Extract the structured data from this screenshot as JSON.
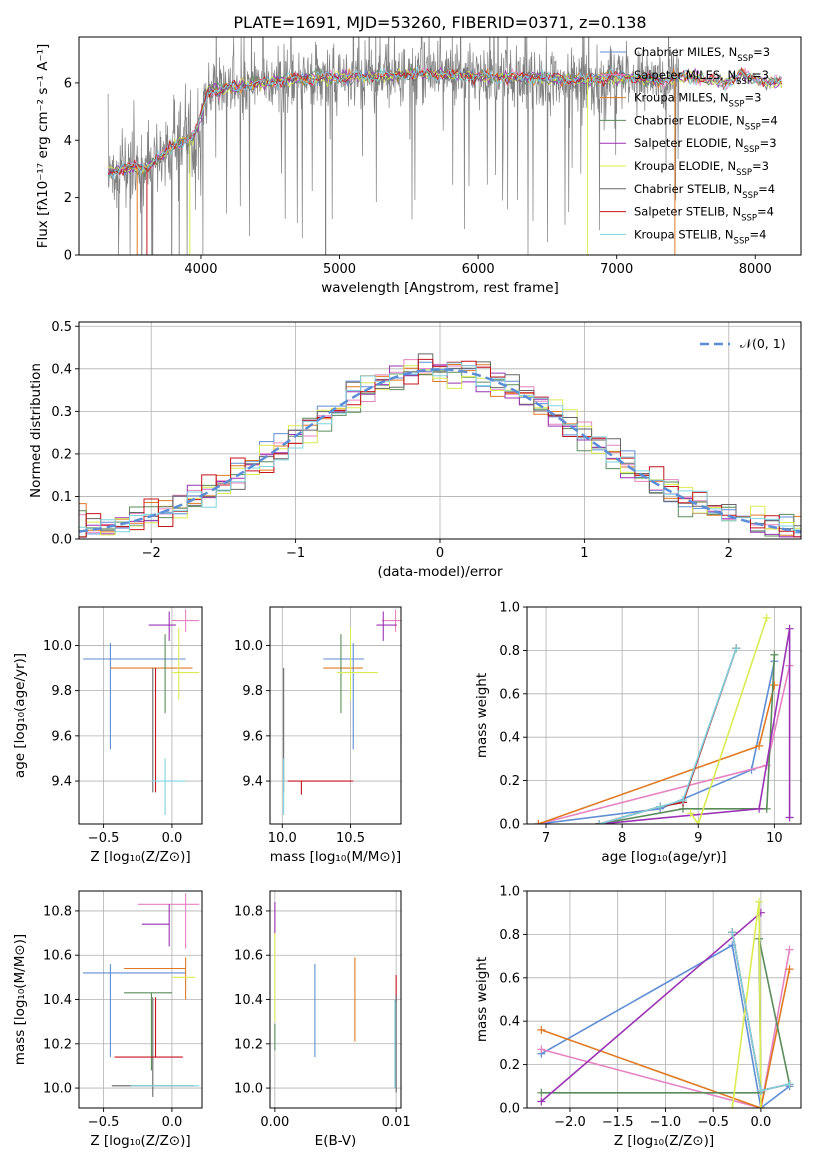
{
  "title": "PLATE=1691, MJD=53260, FIBERID=0371, z=0.138",
  "colors": {
    "Chabrier MILES": "#5f8ed6",
    "Salpeter MILES": "#e683c2",
    "Kroupa MILES": "#e07a22",
    "Chabrier ELODIE": "#5a8c5a",
    "Salpeter ELODIE": "#9a33b5",
    "Kroupa ELODIE": "#dbeb52",
    "Chabrier STELIB": "#666666",
    "Salpeter STELIB": "#c4141c",
    "Kroupa STELIB": "#7ed3df",
    "data": "#808080",
    "gaussian": "#5b8ed6"
  },
  "legend_entries": [
    {
      "label": "Chabrier MILES, N",
      "sub": "SSP",
      "suffix": "=3",
      "model": "Chabrier MILES"
    },
    {
      "label": "Salpeter MILES, N",
      "sub": "SSP",
      "suffix": "=3",
      "model": "Salpeter MILES"
    },
    {
      "label": "Kroupa MILES, N",
      "sub": "SSP",
      "suffix": "=3",
      "model": "Kroupa MILES"
    },
    {
      "label": "Chabrier ELODIE, N",
      "sub": "SSP",
      "suffix": "=4",
      "model": "Chabrier ELODIE"
    },
    {
      "label": "Salpeter ELODIE, N",
      "sub": "SSP",
      "suffix": "=3",
      "model": "Salpeter ELODIE"
    },
    {
      "label": "Kroupa ELODIE, N",
      "sub": "SSP",
      "suffix": "=3",
      "model": "Kroupa ELODIE"
    },
    {
      "label": "Chabrier STELIB, N",
      "sub": "SSP",
      "suffix": "=4",
      "model": "Chabrier STELIB"
    },
    {
      "label": "Salpeter STELIB, N",
      "sub": "SSP",
      "suffix": "=4",
      "model": "Salpeter STELIB"
    },
    {
      "label": "Kroupa STELIB, N",
      "sub": "SSP",
      "suffix": "=4",
      "model": "Kroupa STELIB"
    }
  ],
  "chart_data": [
    {
      "id": "spectrum",
      "type": "line",
      "xlabel": "wavelength [Angstrom, rest frame]",
      "ylabel": "Flux [fλ10⁻¹⁷ erg cm⁻² s⁻¹ A⁻¹]",
      "xlim": [
        3120,
        8330
      ],
      "ylim": [
        0,
        7.6
      ],
      "xticks": [
        4000,
        5000,
        6000,
        7000,
        8000
      ],
      "yticks": [
        0,
        2,
        4,
        6
      ],
      "continuum_points": [
        [
          3350,
          2.9
        ],
        [
          3500,
          3.1
        ],
        [
          3600,
          3.0
        ],
        [
          3800,
          3.8
        ],
        [
          3950,
          4.1
        ],
        [
          4050,
          5.7
        ],
        [
          4300,
          5.9
        ],
        [
          4600,
          6.1
        ],
        [
          4900,
          6.2
        ],
        [
          5200,
          6.2
        ],
        [
          5500,
          6.3
        ],
        [
          5800,
          6.3
        ],
        [
          6100,
          6.2
        ],
        [
          6400,
          6.2
        ],
        [
          6700,
          6.1
        ],
        [
          7000,
          6.2
        ],
        [
          7300,
          6.1
        ],
        [
          7500,
          6.2
        ],
        [
          7700,
          6.1
        ],
        [
          7800,
          6.0
        ],
        [
          7900,
          6.3
        ],
        [
          8000,
          6.1
        ],
        [
          8100,
          6.0
        ]
      ],
      "data_extent": [
        3330,
        7450
      ],
      "model_extent": [
        3330,
        8200
      ]
    },
    {
      "id": "residuals",
      "type": "histogram",
      "xlabel": "(data-model)/error",
      "ylabel": "Normed distribution",
      "xlim": [
        -2.5,
        2.5
      ],
      "ylim": [
        0,
        0.51
      ],
      "xticks": [
        -2,
        -1,
        0,
        1,
        2
      ],
      "yticks": [
        0.0,
        0.1,
        0.2,
        0.3,
        0.4,
        0.5
      ],
      "bin_width": 0.1,
      "reference": {
        "name": "𝒩(0, 1)",
        "mean": 0,
        "sigma": 1
      }
    },
    {
      "id": "age-vs-Z",
      "type": "errorbar",
      "xlabel": "Z [log₁₀(Z/Z⊙)]",
      "ylabel": "age  [log₁₀(age/yr)]",
      "xlim": [
        -0.68,
        0.22
      ],
      "ylim": [
        9.21,
        10.17
      ],
      "xticks": [
        -0.5,
        0.0
      ],
      "yticks": [
        9.4,
        9.6,
        9.8,
        10.0
      ],
      "points": [
        {
          "model": "Chabrier MILES",
          "x": -0.45,
          "y": 9.94,
          "xlo": 0.2,
          "xhi": 0.55,
          "ylo": 0.4,
          "yhi": 0.07
        },
        {
          "model": "Salpeter MILES",
          "x": 0.1,
          "y": 10.11,
          "xlo": 0.1,
          "xhi": 0.1,
          "ylo": 0.05,
          "yhi": 0.05
        },
        {
          "model": "Kroupa MILES",
          "x": -0.25,
          "y": 9.9,
          "xlo": 0.2,
          "xhi": 0.4,
          "ylo": 0.0,
          "yhi": 0.0
        },
        {
          "model": "Chabrier ELODIE",
          "x": -0.05,
          "y": 9.85,
          "xlo": 0.0,
          "xhi": 0.0,
          "ylo": 0.15,
          "yhi": 0.2
        },
        {
          "model": "Salpeter ELODIE",
          "x": -0.02,
          "y": 10.09,
          "xlo": 0.15,
          "xhi": 0.05,
          "ylo": 0.07,
          "yhi": 0.06
        },
        {
          "model": "Kroupa ELODIE",
          "x": 0.05,
          "y": 9.88,
          "xlo": 0.05,
          "xhi": 0.15,
          "ylo": 0.12,
          "yhi": 0.2
        },
        {
          "model": "Chabrier STELIB",
          "x": -0.14,
          "y": 9.65,
          "xlo": 0.0,
          "xhi": 0.0,
          "ylo": 0.3,
          "yhi": 0.25
        },
        {
          "model": "Salpeter STELIB",
          "x": -0.12,
          "y": 9.65,
          "xlo": 0.0,
          "xhi": 0.0,
          "ylo": 0.3,
          "yhi": 0.25
        },
        {
          "model": "Kroupa STELIB",
          "x": -0.05,
          "y": 9.4,
          "xlo": 0.1,
          "xhi": 0.15,
          "ylo": 0.15,
          "yhi": 0.1
        }
      ]
    },
    {
      "id": "age-vs-mass",
      "type": "errorbar",
      "xlabel": "mass [log₁₀(M/M⊙)]",
      "ylabel": "",
      "xlim": [
        9.91,
        10.87
      ],
      "ylim": [
        9.21,
        10.17
      ],
      "xticks": [
        10.0,
        10.5
      ],
      "yticks": [
        9.4,
        9.6,
        9.8,
        10.0
      ],
      "points": [
        {
          "model": "Chabrier MILES",
          "x": 10.52,
          "y": 9.94,
          "xlo": 0.22,
          "xhi": 0.08,
          "ylo": 0.4,
          "yhi": 0.07
        },
        {
          "model": "Salpeter MILES",
          "x": 10.83,
          "y": 10.11,
          "xlo": 0.1,
          "xhi": 0.1,
          "ylo": 0.05,
          "yhi": 0.05
        },
        {
          "model": "Kroupa MILES",
          "x": 10.54,
          "y": 9.9,
          "xlo": 0.24,
          "xhi": 0.05,
          "ylo": 0.0,
          "yhi": 0.0
        },
        {
          "model": "Chabrier ELODIE",
          "x": 10.43,
          "y": 9.85,
          "xlo": 0.0,
          "xhi": 0.0,
          "ylo": 0.15,
          "yhi": 0.2
        },
        {
          "model": "Salpeter ELODIE",
          "x": 10.74,
          "y": 10.09,
          "xlo": 0.05,
          "xhi": 0.1,
          "ylo": 0.07,
          "yhi": 0.06
        },
        {
          "model": "Kroupa ELODIE",
          "x": 10.5,
          "y": 9.88,
          "xlo": 0.1,
          "xhi": 0.2,
          "ylo": 0.12,
          "yhi": 0.2
        },
        {
          "model": "Chabrier STELIB",
          "x": 10.01,
          "y": 9.65,
          "xlo": 0.0,
          "xhi": 0.0,
          "ylo": 0.3,
          "yhi": 0.25
        },
        {
          "model": "Salpeter STELIB",
          "x": 10.14,
          "y": 9.4,
          "xlo": 0.1,
          "xhi": 0.38,
          "ylo": 0.06,
          "yhi": 0.0
        },
        {
          "model": "Kroupa STELIB",
          "x": 10.01,
          "y": 9.4,
          "xlo": 0.0,
          "xhi": 0.0,
          "ylo": 0.15,
          "yhi": 0.1
        }
      ]
    },
    {
      "id": "weight-vs-age",
      "type": "line",
      "xlabel": "age  [log₁₀(age/yr)]",
      "ylabel": "mass weight",
      "xlim": [
        6.75,
        10.35
      ],
      "ylim": [
        0,
        1.0
      ],
      "xticks": [
        7,
        8,
        9,
        10
      ],
      "yticks": [
        0.0,
        0.2,
        0.4,
        0.6,
        0.8,
        1.0
      ],
      "series": [
        {
          "model": "Chabrier MILES",
          "x": [
            6.9,
            8.5,
            9.7,
            10.0
          ],
          "y": [
            0.0,
            0.07,
            0.25,
            0.75
          ]
        },
        {
          "model": "Salpeter MILES",
          "x": [
            6.9,
            9.9,
            10.2
          ],
          "y": [
            0.0,
            0.27,
            0.73
          ]
        },
        {
          "model": "Kroupa MILES",
          "x": [
            6.9,
            9.8,
            10.0
          ],
          "y": [
            0.0,
            0.36,
            0.64
          ]
        },
        {
          "model": "Chabrier ELODIE",
          "x": [
            7.7,
            8.8,
            9.9,
            10.0
          ],
          "y": [
            0.0,
            0.07,
            0.07,
            0.78
          ]
        },
        {
          "model": "Salpeter ELODIE",
          "x": [
            7.7,
            9.8,
            10.2,
            10.2
          ],
          "y": [
            0.0,
            0.07,
            0.9,
            0.03
          ]
        },
        {
          "model": "Kroupa ELODIE",
          "x": [
            8.9,
            9.0,
            9.9
          ],
          "y": [
            0.05,
            0.0,
            0.95
          ]
        },
        {
          "model": "Chabrier STELIB",
          "x": [
            7.7,
            8.5,
            8.8,
            9.5
          ],
          "y": [
            0.0,
            0.08,
            0.1,
            0.81
          ]
        },
        {
          "model": "Salpeter STELIB",
          "x": [
            7.7,
            8.5,
            8.8,
            9.5
          ],
          "y": [
            0.0,
            0.08,
            0.1,
            0.81
          ]
        },
        {
          "model": "Kroupa STELIB",
          "x": [
            7.7,
            8.5,
            8.8,
            9.5
          ],
          "y": [
            0.0,
            0.08,
            0.11,
            0.81
          ]
        }
      ]
    },
    {
      "id": "mass-vs-Z",
      "type": "errorbar",
      "xlabel": "Z [log₁₀(Z/Z⊙)]",
      "ylabel": "mass [log₁₀(M/M⊙)]",
      "xlim": [
        -0.68,
        0.22
      ],
      "ylim": [
        9.91,
        10.89
      ],
      "xticks": [
        -0.5,
        0.0
      ],
      "yticks": [
        10.0,
        10.2,
        10.4,
        10.6,
        10.8
      ],
      "points": [
        {
          "model": "Chabrier MILES",
          "x": -0.45,
          "y": 10.52,
          "xlo": 0.2,
          "xhi": 0.55,
          "ylo": 0.38,
          "yhi": 0.04
        },
        {
          "model": "Salpeter MILES",
          "x": 0.1,
          "y": 10.83,
          "xlo": 0.35,
          "xhi": 0.1,
          "ylo": 0.2,
          "yhi": 0.05
        },
        {
          "model": "Kroupa MILES",
          "x": 0.1,
          "y": 10.54,
          "xlo": 0.45,
          "xhi": 0.0,
          "ylo": 0.14,
          "yhi": 0.05
        },
        {
          "model": "Chabrier ELODIE",
          "x": -0.15,
          "y": 10.43,
          "xlo": 0.2,
          "xhi": 0.15,
          "ylo": 0.35,
          "yhi": 0.0
        },
        {
          "model": "Salpeter ELODIE",
          "x": -0.02,
          "y": 10.74,
          "xlo": 0.2,
          "xhi": 0.0,
          "ylo": 0.1,
          "yhi": 0.09
        },
        {
          "model": "Kroupa ELODIE",
          "x": 0.05,
          "y": 10.5,
          "xlo": 0.05,
          "xhi": 0.12,
          "ylo": 0.0,
          "yhi": 0.0
        },
        {
          "model": "Chabrier STELIB",
          "x": -0.14,
          "y": 10.01,
          "xlo": 0.3,
          "xhi": 0.3,
          "ylo": 0.05,
          "yhi": 0.4
        },
        {
          "model": "Salpeter STELIB",
          "x": -0.12,
          "y": 10.14,
          "xlo": 0.3,
          "xhi": 0.2,
          "ylo": 0.0,
          "yhi": 0.27
        },
        {
          "model": "Kroupa STELIB",
          "x": -0.05,
          "y": 10.01,
          "xlo": 0.25,
          "xhi": 0.25,
          "ylo": 0.0,
          "yhi": 0.0
        }
      ]
    },
    {
      "id": "mass-vs-ebv",
      "type": "errorbar",
      "xlabel": "E(B-V)",
      "ylabel": "",
      "xlim": [
        -0.0004,
        0.0104
      ],
      "ylim": [
        9.91,
        10.89
      ],
      "xticks": [
        0.0,
        0.01
      ],
      "xticklabels": [
        "0.00",
        "0.01"
      ],
      "yticks": [
        10.0,
        10.2,
        10.4,
        10.6,
        10.8
      ],
      "points": [
        {
          "model": "Chabrier MILES",
          "x": 0.0033,
          "y": 10.35,
          "xlo": 0,
          "xhi": 0,
          "ylo": 0.21,
          "yhi": 0.21
        },
        {
          "model": "Kroupa MILES",
          "x": 0.0066,
          "y": 10.4,
          "xlo": 0,
          "xhi": 0,
          "ylo": 0.19,
          "yhi": 0.19
        },
        {
          "model": "Salpeter ELODIE",
          "x": 0.0,
          "y": 10.77,
          "xlo": 0,
          "xhi": 0,
          "ylo": 0.07,
          "yhi": 0.07
        },
        {
          "model": "Kroupa ELODIE",
          "x": 0.0,
          "y": 10.5,
          "xlo": 0,
          "xhi": 0,
          "ylo": 0.2,
          "yhi": 0.2
        },
        {
          "model": "Chabrier ELODIE",
          "x": 0.0,
          "y": 10.23,
          "xlo": 0,
          "xhi": 0,
          "ylo": 0.06,
          "yhi": 0.06
        },
        {
          "model": "Salpeter STELIB",
          "x": 0.01,
          "y": 10.45,
          "xlo": 0,
          "xhi": 0,
          "ylo": 0.06,
          "yhi": 0.06
        },
        {
          "model": "Chabrier STELIB",
          "x": 0.01,
          "y": 10.2,
          "xlo": 0,
          "xhi": 0,
          "ylo": 0.22,
          "yhi": 0.22
        },
        {
          "model": "Kroupa STELIB",
          "x": 0.0099,
          "y": 10.2,
          "xlo": 0,
          "xhi": 0,
          "ylo": 0.2,
          "yhi": 0.2
        }
      ]
    },
    {
      "id": "weight-vs-Z",
      "type": "line",
      "xlabel": "Z [log₁₀(Z/Z⊙)]",
      "ylabel": "mass weight",
      "xlim": [
        -2.45,
        0.42
      ],
      "ylim": [
        0,
        1.0
      ],
      "xticks": [
        -2.0,
        -1.5,
        -1.0,
        -0.5,
        0.0
      ],
      "xticklabels": [
        "−2.0",
        "−1.5",
        "−1.0",
        "−0.5",
        "0.0"
      ],
      "yticks": [
        0.0,
        0.2,
        0.4,
        0.6,
        0.8,
        1.0
      ],
      "series": [
        {
          "model": "Chabrier MILES",
          "x": [
            -2.3,
            -0.3,
            0.0,
            0.3
          ],
          "y": [
            0.25,
            0.75,
            0.0,
            0.1
          ]
        },
        {
          "model": "Salpeter MILES",
          "x": [
            -2.3,
            0.0,
            0.3
          ],
          "y": [
            0.27,
            0.0,
            0.73
          ]
        },
        {
          "model": "Kroupa MILES",
          "x": [
            -2.3,
            0.0,
            0.3
          ],
          "y": [
            0.36,
            0.0,
            0.64
          ]
        },
        {
          "model": "Chabrier ELODIE",
          "x": [
            -2.3,
            0.0,
            -0.02,
            0.3
          ],
          "y": [
            0.07,
            0.07,
            0.78,
            0.11
          ]
        },
        {
          "model": "Salpeter ELODIE",
          "x": [
            -2.3,
            0.0
          ],
          "y": [
            0.03,
            0.9
          ]
        },
        {
          "model": "Kroupa ELODIE",
          "x": [
            -0.3,
            -0.02,
            0.0
          ],
          "y": [
            0.0,
            0.95,
            0.0
          ]
        },
        {
          "model": "Chabrier STELIB",
          "x": [
            -0.3,
            0.0,
            0.3
          ],
          "y": [
            0.81,
            0.08,
            0.11
          ]
        },
        {
          "model": "Salpeter STELIB",
          "x": [
            -0.3,
            0.0,
            0.3
          ],
          "y": [
            0.81,
            0.08,
            0.11
          ]
        },
        {
          "model": "Kroupa STELIB",
          "x": [
            -0.3,
            0.0,
            0.3
          ],
          "y": [
            0.81,
            0.08,
            0.11
          ]
        }
      ]
    }
  ]
}
